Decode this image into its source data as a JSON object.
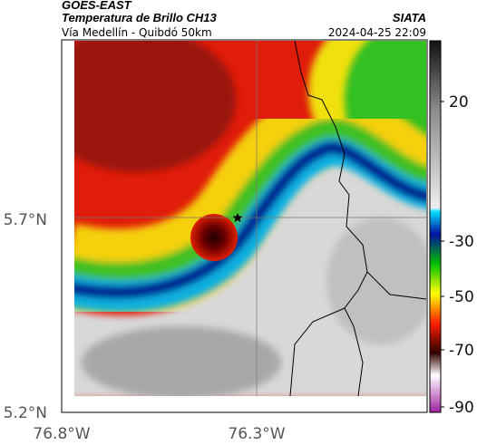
{
  "header": {
    "title": "GOES-EAST",
    "subtitle": "Temperatura de Brillo CH13",
    "source": "SIATA",
    "route": "Vía Medellín - Quibdó 50km",
    "timestamp": "2024-04-25 22:09"
  },
  "axes": {
    "y_labels": [
      "5.7°N",
      "5.2°N"
    ],
    "x_labels": [
      "76.8°W",
      "76.3°W"
    ]
  },
  "colorbar": {
    "ticks": [
      "20",
      "-30",
      "-50",
      "-70",
      "-90"
    ]
  }
}
